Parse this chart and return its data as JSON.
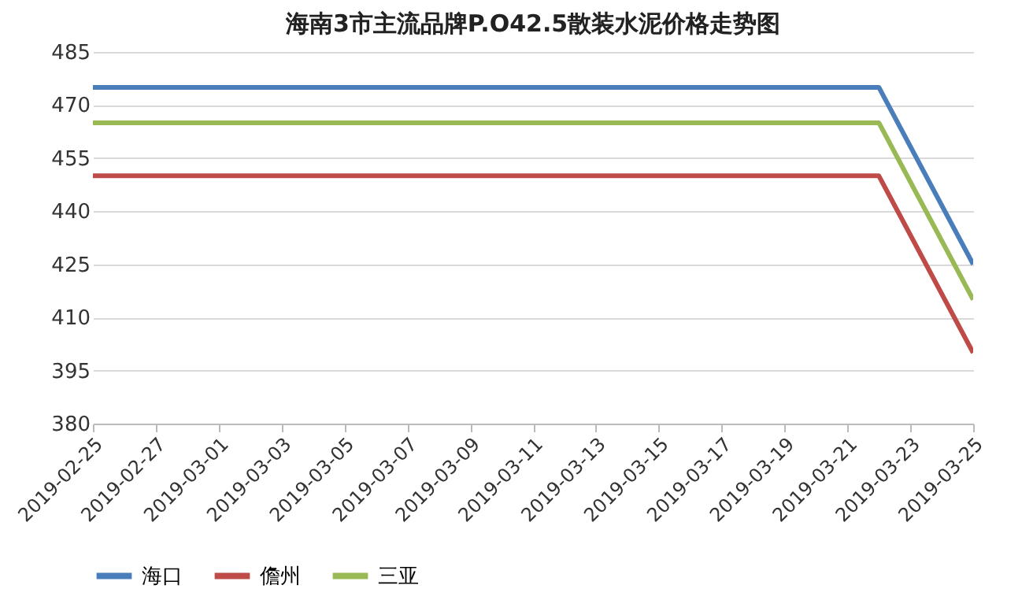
{
  "chart_data": {
    "type": "line",
    "title": "海南3市主流品牌P.O42.5散装水泥价格走势图",
    "x": [
      "2019-02-25",
      "2019-03-22",
      "2019-03-25"
    ],
    "series": [
      {
        "name": "海口",
        "color": "#4a7ebb",
        "values": [
          475,
          475,
          425
        ]
      },
      {
        "name": "儋州",
        "color": "#be4b48",
        "values": [
          450,
          450,
          400
        ]
      },
      {
        "name": "三亚",
        "color": "#98b954",
        "values": [
          465,
          465,
          415
        ]
      }
    ],
    "xlim": [
      "2019-02-25",
      "2019-03-25"
    ],
    "xticks": [
      "2019-02-25",
      "2019-02-27",
      "2019-03-01",
      "2019-03-03",
      "2019-03-05",
      "2019-03-07",
      "2019-03-09",
      "2019-03-11",
      "2019-03-13",
      "2019-03-15",
      "2019-03-17",
      "2019-03-19",
      "2019-03-21",
      "2019-03-23",
      "2019-03-25"
    ],
    "ylim": [
      380,
      485
    ],
    "yticks": [
      380,
      395,
      410,
      425,
      440,
      455,
      470,
      485
    ],
    "grid": "y",
    "legend": "bottom",
    "marker": "none",
    "line_style": "solid"
  }
}
